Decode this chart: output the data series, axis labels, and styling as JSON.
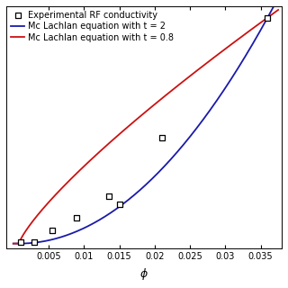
{
  "title": "",
  "xlabel": "$\\phi$",
  "ylabel": "",
  "xlim": [
    -0.001,
    0.038
  ],
  "ylim": [
    -0.02,
    1.05
  ],
  "exp_x": [
    0.001,
    0.003,
    0.0055,
    0.009,
    0.0135,
    0.015,
    0.021,
    0.036
  ],
  "exp_y": [
    0.005,
    0.005,
    0.06,
    0.115,
    0.21,
    0.175,
    0.47,
    1.0
  ],
  "xticks": [
    0.005,
    0.01,
    0.015,
    0.02,
    0.025,
    0.03,
    0.035
  ],
  "phi_c": 0.0008,
  "sigma_max": 1.0,
  "t_blue": 2.0,
  "t_red": 0.8,
  "line_blue_color": "#1a1aaa",
  "line_red_color": "#cc1111",
  "marker_color": "black",
  "legend_exp": "Experimental RF conductivity",
  "legend_blue": "Mc Lachlan equation with t = 2",
  "legend_red": "Mc Lachlan equation with t = 0.8",
  "bg_color": "#ffffff",
  "legend_fontsize": 7,
  "tick_fontsize": 7,
  "label_fontsize": 9,
  "linewidth": 1.3
}
